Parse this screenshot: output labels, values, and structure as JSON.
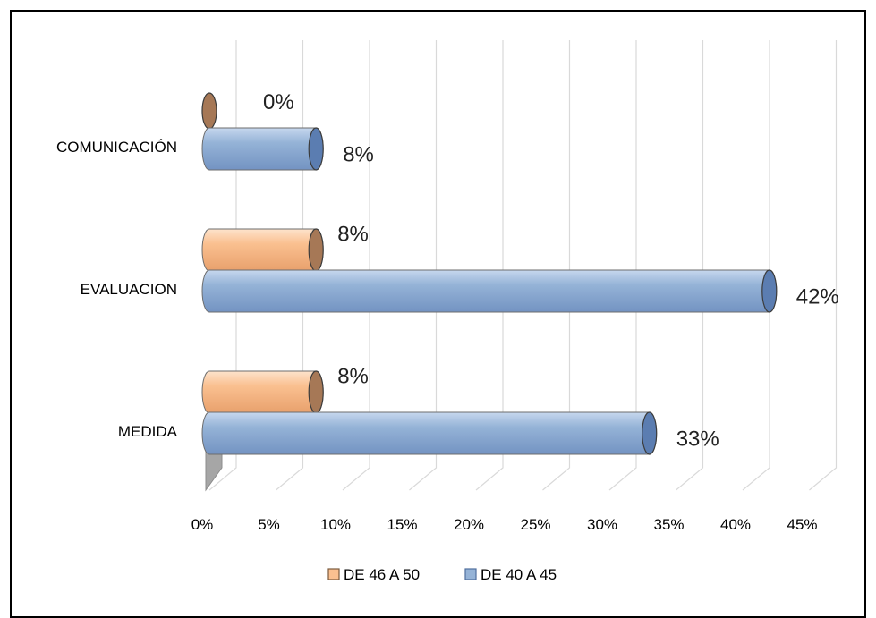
{
  "chart_data": {
    "type": "bar",
    "orientation": "horizontal",
    "style": "3d-cylinder",
    "categories": [
      "COMUNICACIÓN",
      "EVALUACION",
      "MEDIDA"
    ],
    "series": [
      {
        "name": "DE 46 A 50",
        "values": [
          0,
          8,
          8
        ],
        "labels": [
          "0%",
          "8%",
          "8%"
        ],
        "color": "#FAC090"
      },
      {
        "name": "DE 40 A 45",
        "values": [
          8,
          42,
          33
        ],
        "labels": [
          "8%",
          "42%",
          "33%"
        ],
        "color": "#95B3D7"
      }
    ],
    "x_ticks": [
      "0%",
      "5%",
      "10%",
      "15%",
      "20%",
      "25%",
      "30%",
      "35%",
      "40%",
      "45%"
    ],
    "xlim": [
      0,
      45
    ],
    "grid": true,
    "legend": "bottom"
  },
  "colors": {
    "series1_fill": "#FAC090",
    "series1_end": "#A67856",
    "series2_fill": "#95B3D7",
    "series2_end": "#5B7DB1",
    "gridline": "#D9D9D9"
  }
}
